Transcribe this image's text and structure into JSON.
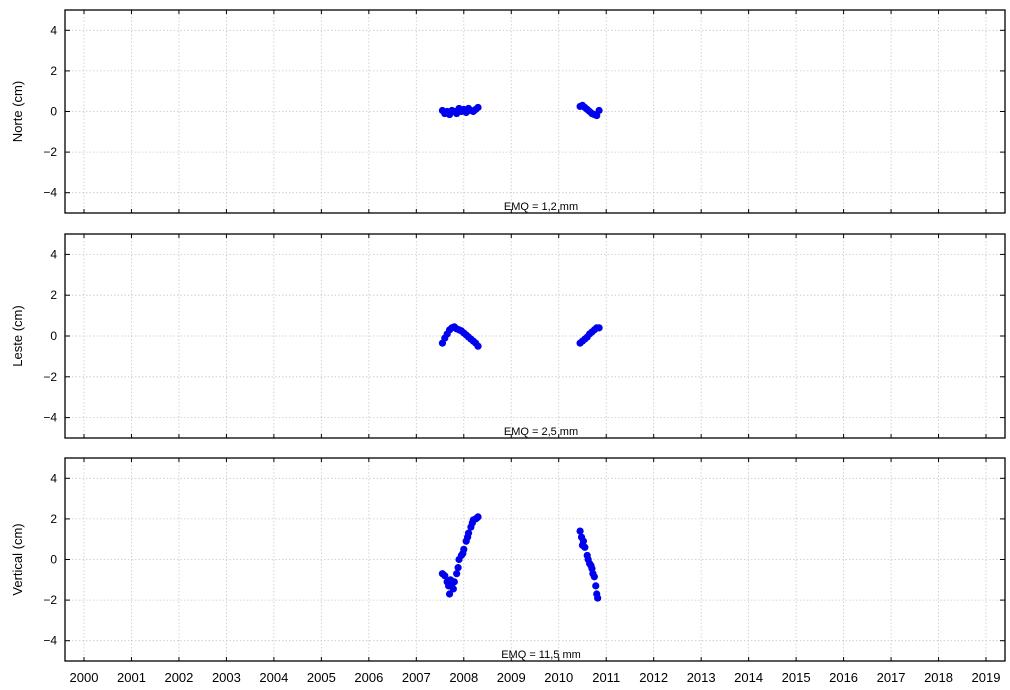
{
  "colors": {
    "points": "#0000ee",
    "grid": "#c8c8c8",
    "frame": "#000000"
  },
  "chart_data": [
    {
      "type": "scatter",
      "ylabel": "Norte (cm)",
      "annotation": "EMQ = 1,2 mm",
      "xlim": [
        1999.6,
        2019.4
      ],
      "ylim": [
        -5,
        5
      ],
      "yticks": [
        4,
        2,
        0,
        -2,
        -4
      ],
      "ytick_labels": [
        "4",
        "2",
        "0",
        "−2",
        "−4"
      ],
      "grid": true,
      "series": [
        {
          "x": [
            2007.55,
            2007.6,
            2007.65,
            2007.7,
            2007.75,
            2007.8,
            2007.85,
            2007.9,
            2007.95,
            2008.0,
            2008.05,
            2008.1,
            2008.15,
            2008.2,
            2008.25,
            2008.3,
            2010.45,
            2010.5,
            2010.55,
            2010.6,
            2010.65,
            2010.7,
            2010.75,
            2010.8,
            2010.85
          ],
          "y": [
            0.05,
            -0.1,
            0.0,
            -0.15,
            0.05,
            0.0,
            -0.1,
            0.15,
            0.0,
            0.1,
            -0.05,
            0.15,
            0.05,
            0.0,
            0.1,
            0.2,
            0.25,
            0.3,
            0.2,
            0.1,
            0.0,
            -0.1,
            -0.15,
            -0.2,
            0.05
          ]
        }
      ]
    },
    {
      "type": "scatter",
      "ylabel": "Leste (cm)",
      "annotation": "EMQ = 2,5 mm",
      "xlim": [
        1999.6,
        2019.4
      ],
      "ylim": [
        -5,
        5
      ],
      "yticks": [
        4,
        2,
        0,
        -2,
        -4
      ],
      "ytick_labels": [
        "4",
        "2",
        "0",
        "−2",
        "−4"
      ],
      "grid": true,
      "series": [
        {
          "x": [
            2007.55,
            2007.6,
            2007.65,
            2007.7,
            2007.75,
            2007.8,
            2007.85,
            2007.9,
            2007.95,
            2008.0,
            2008.05,
            2008.1,
            2008.15,
            2008.2,
            2008.25,
            2008.3,
            2010.45,
            2010.5,
            2010.55,
            2010.6,
            2010.65,
            2010.7,
            2010.75,
            2010.8,
            2010.85
          ],
          "y": [
            -0.35,
            -0.1,
            0.1,
            0.3,
            0.4,
            0.45,
            0.35,
            0.3,
            0.25,
            0.15,
            0.05,
            -0.05,
            -0.15,
            -0.25,
            -0.35,
            -0.5,
            -0.35,
            -0.25,
            -0.15,
            -0.05,
            0.1,
            0.2,
            0.3,
            0.4,
            0.4
          ]
        }
      ]
    },
    {
      "type": "scatter",
      "ylabel": "Vertical (cm)",
      "annotation": "EMQ = 11,5 mm",
      "xlim": [
        1999.6,
        2019.4
      ],
      "ylim": [
        -5,
        5
      ],
      "yticks": [
        4,
        2,
        0,
        -2,
        -4
      ],
      "ytick_labels": [
        "4",
        "2",
        "0",
        "−2",
        "−4"
      ],
      "grid": true,
      "xticks": [
        2000,
        2001,
        2002,
        2003,
        2004,
        2005,
        2006,
        2007,
        2008,
        2009,
        2010,
        2011,
        2012,
        2013,
        2014,
        2015,
        2016,
        2017,
        2018,
        2019
      ],
      "xtick_labels": [
        "2000",
        "2001",
        "2002",
        "2003",
        "2004",
        "2005",
        "2006",
        "2007",
        "2008",
        "2009",
        "2010",
        "2011",
        "2012",
        "2013",
        "2014",
        "2015",
        "2016",
        "2017",
        "2018",
        "2019"
      ],
      "series": [
        {
          "x": [
            2007.55,
            2007.6,
            2007.65,
            2007.68,
            2007.7,
            2007.72,
            2007.75,
            2007.78,
            2007.8,
            2007.85,
            2007.88,
            2007.9,
            2007.95,
            2007.98,
            2008.0,
            2008.05,
            2008.08,
            2008.1,
            2008.15,
            2008.18,
            2008.2,
            2008.25,
            2008.28,
            2008.3,
            2010.45,
            2010.48,
            2010.5,
            2010.52,
            2010.55,
            2010.6,
            2010.62,
            2010.65,
            2010.68,
            2010.7,
            2010.72,
            2010.75,
            2010.78,
            2010.8,
            2010.82
          ],
          "y": [
            -0.7,
            -0.8,
            -1.1,
            -1.3,
            -1.7,
            -1.0,
            -1.2,
            -1.45,
            -1.1,
            -0.7,
            -0.4,
            0.0,
            0.2,
            0.3,
            0.5,
            0.9,
            1.1,
            1.3,
            1.6,
            1.8,
            1.95,
            2.0,
            2.05,
            2.1,
            1.4,
            1.1,
            0.7,
            0.9,
            0.6,
            0.2,
            0.0,
            -0.2,
            -0.3,
            -0.45,
            -0.7,
            -0.85,
            -1.3,
            -1.7,
            -1.9
          ]
        }
      ]
    }
  ]
}
